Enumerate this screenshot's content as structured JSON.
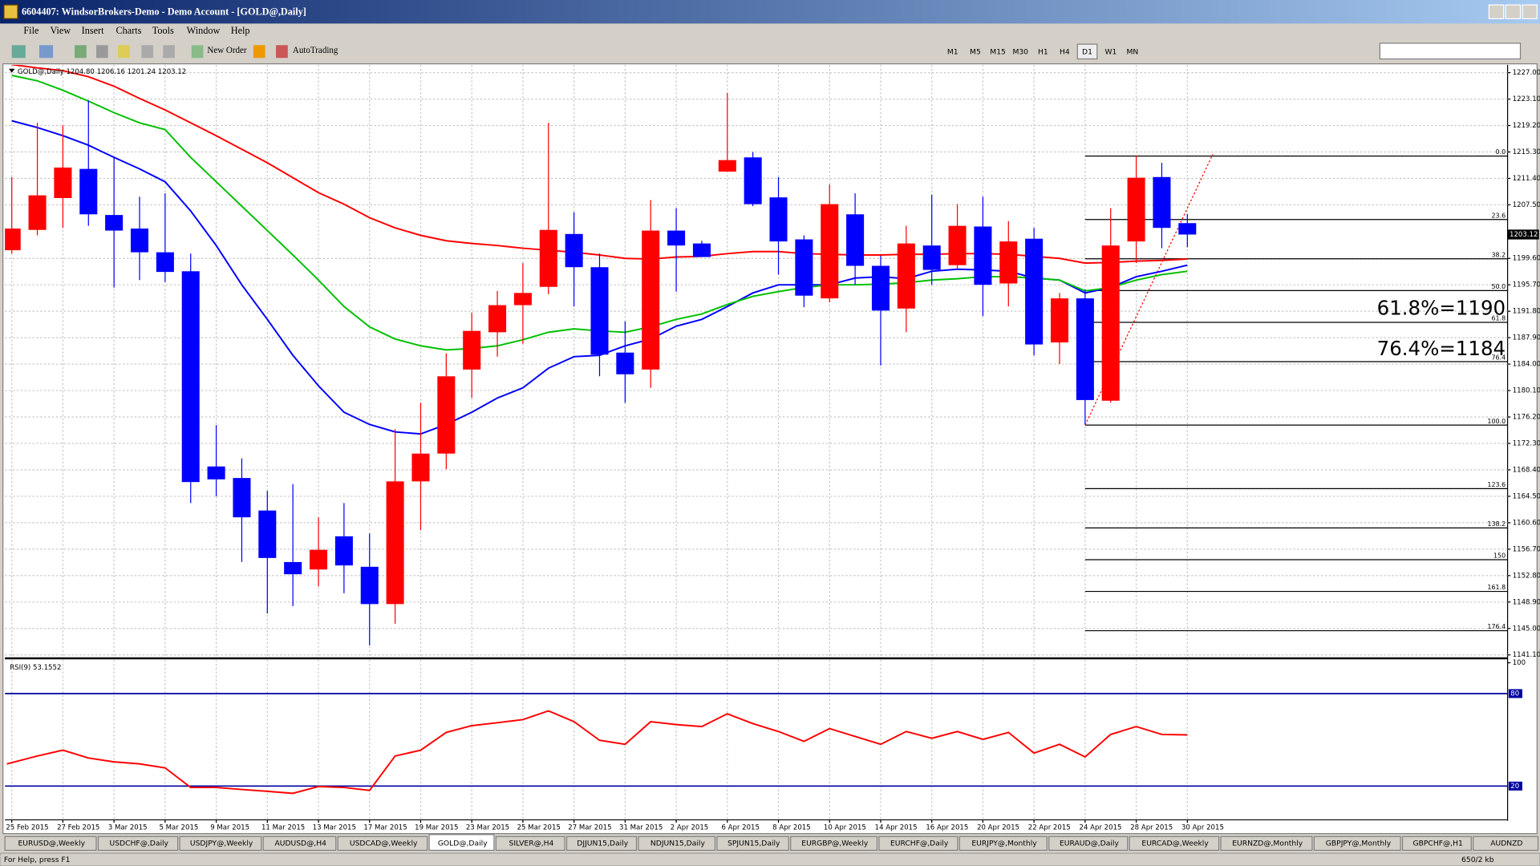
{
  "window": {
    "title": "6604407: WindsorBrokers-Demo - Demo Account - [GOLD@,Daily]",
    "menu": [
      "File",
      "View",
      "Insert",
      "Charts",
      "Tools",
      "Window",
      "Help"
    ],
    "toolbar": [
      "New Order",
      "AutoTrading"
    ],
    "timeframes": [
      "M1",
      "M5",
      "M15",
      "M30",
      "H1",
      "H4",
      "D1",
      "W1",
      "MN"
    ],
    "active_timeframe": 6,
    "tabs": [
      "EURUSD@,Weekly",
      "USDCHF@,Daily",
      "USDJPY@,Weekly",
      "AUDUSD@,H4",
      "USDCAD@,Weekly",
      "GOLD@,Daily",
      "SILVER@,H4",
      "DJJUN15,Daily",
      "NDJUN15,Daily",
      "SPJUN15,Daily",
      "EURGBP@,Weekly",
      "EURCHF@,Daily",
      "EURJPY@,Monthly",
      "EURAUD@,Daily",
      "EURCAD@,Weekly",
      "EURNZD@,Monthly",
      "GBPJPY@,Monthly",
      "GBPCHF@,H1",
      "AUDNZD"
    ],
    "active_tab": 5,
    "status": [
      "For Help, press F1",
      "650/2 kb"
    ]
  },
  "chart_data": [
    {
      "type": "candlestick",
      "header": "GOLD@,Daily  1204.80 1206.16 1201.24 1203.12",
      "categories": [
        "25 Feb 2015",
        null,
        "27 Feb 2015",
        null,
        "3 Mar 2015",
        null,
        "5 Mar 2015",
        null,
        "9 Mar 2015",
        null,
        "11 Mar 2015",
        null,
        "13 Mar 2015",
        null,
        "17 Mar 2015",
        null,
        "19 Mar 2015",
        null,
        "23 Mar 2015",
        null,
        "25 Mar 2015",
        null,
        "27 Mar 2015",
        null,
        "31 Mar 2015",
        null,
        "2 Apr 2015",
        null,
        "6 Apr 2015",
        null,
        "8 Apr 2015",
        null,
        "10 Apr 2015",
        null,
        "14 Apr 2015",
        null,
        "16 Apr 2015",
        null,
        "20 Apr 2015",
        null,
        "22 Apr 2015",
        null,
        "24 Apr 2015",
        null,
        "28 Apr 2015",
        null,
        "30 Apr 2015"
      ],
      "open": [
        1200.8,
        1203.8,
        1208.5,
        1212.8,
        1206.0,
        1204.0,
        1200.5,
        1197.7,
        1168.9,
        1167.2,
        1162.4,
        1154.8,
        1153.7,
        1158.6,
        1154.1,
        1148.6,
        1166.7,
        1170.8,
        1183.2,
        1188.7,
        1192.7,
        1195.4,
        1203.2,
        1198.3,
        1185.7,
        1183.2,
        1203.7,
        1201.8,
        1212.4,
        1214.5,
        1208.6,
        1202.4,
        1193.7,
        1206.1,
        1198.5,
        1192.2,
        1201.5,
        1198.6,
        1204.3,
        1195.9,
        1202.5,
        1187.2,
        1193.7,
        1178.6,
        1202.1,
        1211.6,
        1204.8
      ],
      "high": [
        1211.6,
        1219.6,
        1219.2,
        1222.9,
        1214.5,
        1208.7,
        1209.2,
        1200.3,
        1175.0,
        1170.1,
        1165.3,
        1166.3,
        1161.4,
        1163.5,
        1159.0,
        1174.4,
        1178.3,
        1185.6,
        1191.6,
        1194.8,
        1198.9,
        1219.6,
        1206.4,
        1200.3,
        1190.3,
        1208.2,
        1207.0,
        1202.2,
        1224.0,
        1215.3,
        1211.6,
        1203.0,
        1210.5,
        1209.2,
        1200.0,
        1204.4,
        1209.0,
        1207.6,
        1208.7,
        1205.1,
        1204.1,
        1194.5,
        1195.0,
        1207.0,
        1214.8,
        1213.7,
        1206.16
      ],
      "low": [
        1200.3,
        1203.0,
        1204.1,
        1204.4,
        1195.3,
        1196.4,
        1196.1,
        1163.5,
        1164.5,
        1154.8,
        1147.2,
        1148.3,
        1151.2,
        1150.2,
        1142.5,
        1145.7,
        1159.5,
        1168.5,
        1179.0,
        1185.1,
        1187.0,
        1194.3,
        1192.5,
        1182.2,
        1178.3,
        1180.5,
        1194.7,
        1199.8,
        1212.4,
        1207.3,
        1197.2,
        1192.4,
        1193.1,
        1195.7,
        1183.8,
        1188.7,
        1195.7,
        1197.9,
        1191.1,
        1192.5,
        1185.3,
        1184.0,
        1175.1,
        1178.3,
        1198.9,
        1201.1,
        1201.24
      ],
      "close": [
        1204.0,
        1208.9,
        1213.0,
        1206.1,
        1203.7,
        1200.5,
        1197.6,
        1166.6,
        1167.0,
        1161.4,
        1155.4,
        1153.0,
        1156.6,
        1154.3,
        1148.6,
        1166.7,
        1170.8,
        1182.2,
        1188.9,
        1192.7,
        1194.5,
        1203.8,
        1198.3,
        1185.4,
        1182.5,
        1203.7,
        1201.5,
        1199.8,
        1214.1,
        1207.6,
        1202.1,
        1194.1,
        1207.6,
        1198.5,
        1191.9,
        1201.8,
        1197.9,
        1204.4,
        1195.7,
        1202.1,
        1186.9,
        1193.7,
        1178.7,
        1201.5,
        1211.5,
        1204.1,
        1203.12
      ],
      "up_color": "#ff0000",
      "down_color": "#0000ff",
      "series": [
        {
          "color": "#0000ff",
          "values": [
            1219.9,
            1218.9,
            1217.7,
            1216.3,
            1214.5,
            1212.8,
            1210.9,
            1206.6,
            1201.5,
            1195.7,
            1190.6,
            1185.3,
            1180.8,
            1176.9,
            1175.1,
            1174.0,
            1173.7,
            1175.1,
            1176.9,
            1179.0,
            1180.5,
            1183.4,
            1185.1,
            1185.3,
            1186.7,
            1187.7,
            1189.6,
            1190.6,
            1192.5,
            1194.5,
            1195.7,
            1195.7,
            1195.7,
            1196.7,
            1196.9,
            1196.6,
            1197.7,
            1198.0,
            1197.9,
            1197.7,
            1196.7,
            1196.4,
            1194.5,
            1195.3,
            1196.9,
            1197.7,
            1198.6
          ]
        },
        {
          "color": "#00c000",
          "values": [
            1226.6,
            1225.8,
            1224.4,
            1222.8,
            1221.1,
            1219.6,
            1218.6,
            1214.5,
            1210.9,
            1207.3,
            1203.7,
            1200.1,
            1196.4,
            1192.5,
            1189.5,
            1187.7,
            1186.7,
            1186.1,
            1186.3,
            1186.7,
            1187.6,
            1188.7,
            1189.2,
            1188.9,
            1188.7,
            1189.5,
            1190.6,
            1191.4,
            1192.8,
            1194.0,
            1194.7,
            1195.3,
            1195.7,
            1195.7,
            1195.8,
            1196.0,
            1196.4,
            1196.6,
            1196.9,
            1196.9,
            1196.7,
            1196.4,
            1194.8,
            1195.3,
            1196.4,
            1197.2,
            1197.7
          ]
        },
        {
          "color": "#ff0000",
          "values": [
            1228.2,
            1227.7,
            1227.3,
            1226.4,
            1225.0,
            1223.2,
            1221.5,
            1219.6,
            1217.7,
            1215.7,
            1213.7,
            1211.5,
            1209.3,
            1207.6,
            1205.6,
            1204.1,
            1203.0,
            1202.2,
            1201.8,
            1201.5,
            1201.1,
            1200.8,
            1200.5,
            1200.1,
            1199.6,
            1199.5,
            1199.8,
            1199.9,
            1200.3,
            1200.6,
            1200.6,
            1200.3,
            1200.2,
            1200.1,
            1200.1,
            1200.2,
            1200.2,
            1200.3,
            1200.3,
            1200.2,
            1199.9,
            1199.6,
            1198.9,
            1199.0,
            1199.2,
            1199.3,
            1199.5
          ]
        }
      ],
      "ylim": [
        1141.1,
        1227.0
      ],
      "yticks": [
        {
          "value": 1227,
          "label": "1227.00"
        },
        {
          "value": 1223.1,
          "label": "1223.10"
        },
        {
          "value": 1219.2,
          "label": "1219.20"
        },
        {
          "value": 1215.3,
          "label": "1215.30"
        },
        {
          "value": 1211.4,
          "label": "1211.40"
        },
        {
          "value": 1207.5,
          "label": "1207.50"
        },
        {
          "value": 1199.6,
          "label": "1199.60"
        },
        {
          "value": 1195.7,
          "label": "1195.70"
        },
        {
          "value": 1191.8,
          "label": "1191.80"
        },
        {
          "value": 1187.9,
          "label": "1187.90"
        },
        {
          "value": 1184,
          "label": "1184.00"
        },
        {
          "value": 1180.1,
          "label": "1180.10"
        },
        {
          "value": 1176.2,
          "label": "1176.20"
        },
        {
          "value": 1172.3,
          "label": "1172.30"
        },
        {
          "value": 1168.4,
          "label": "1168.40"
        },
        {
          "value": 1164.5,
          "label": "1164.50"
        },
        {
          "value": 1160.6,
          "label": "1160.60"
        },
        {
          "value": 1156.7,
          "label": "1156.70"
        },
        {
          "value": 1152.8,
          "label": "1152.80"
        },
        {
          "value": 1148.9,
          "label": "1148.90"
        },
        {
          "value": 1145,
          "label": "1145.00"
        },
        {
          "value": 1141.1,
          "label": "1141.10"
        }
      ],
      "grid": true,
      "fib": {
        "high": 1214.7,
        "low": 1175.0,
        "color": "#000000",
        "levels": [
          {
            "value": 0,
            "label": "0.0"
          },
          23.6,
          38.2,
          {
            "value": 50,
            "label": "50.0"
          },
          61.8,
          76.4,
          {
            "value": 100,
            "label": "100.0"
          },
          123.6,
          138.2,
          150,
          161.8,
          176.4
        ]
      },
      "annotations": [
        "61.8%=1190",
        "76.4%=1184"
      ]
    },
    {
      "type": "line",
      "title": "RSI(9) 53.1552",
      "series": [
        {
          "color": "#ff0000",
          "values": [
            34.4,
            39.5,
            43.3,
            38.2,
            35.7,
            34.4,
            31.8,
            19.1,
            19.1,
            17.8,
            16.6,
            15.3,
            19.7,
            19.1,
            17.2,
            39.5,
            43.3,
            54.8,
            59.2,
            61.1,
            63.1,
            68.8,
            61.8,
            49.7,
            47.1,
            61.8,
            59.9,
            58.6,
            66.9,
            60.5,
            55.4,
            49.0,
            57.3,
            52.2,
            47.1,
            55.4,
            51.0,
            55.4,
            50.3,
            54.8,
            41.4,
            47.1,
            38.9,
            53.5,
            58.6,
            53.5,
            53.2
          ]
        }
      ],
      "ylim": [
        0,
        100
      ],
      "yticks": [
        100
      ],
      "levels": [
        80,
        20
      ],
      "level_color": "#0000a0"
    }
  ]
}
